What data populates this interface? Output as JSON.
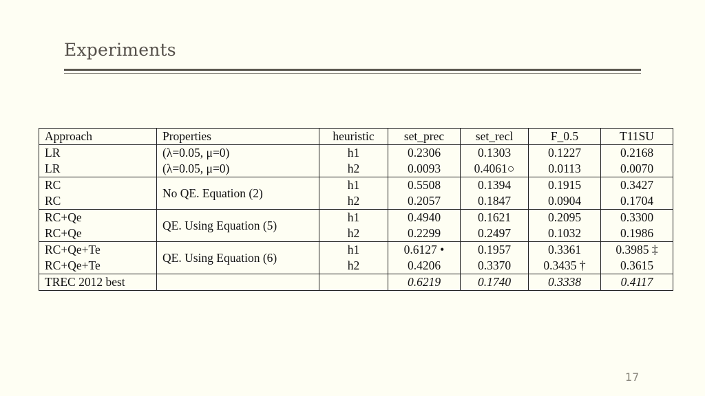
{
  "slide": {
    "title": "Experiments",
    "page_number": "17"
  },
  "table": {
    "headers": [
      "Approach",
      "Properties",
      "heuristic",
      "set_prec",
      "set_recl",
      "F_0.5",
      "T11SU"
    ],
    "groups": [
      {
        "properties": "",
        "rows": [
          {
            "approach": "LR",
            "properties": "(λ=0.05, μ=0)",
            "heuristic": "h1",
            "set_prec": "0.2306",
            "set_recl": "0.1303",
            "f05": "0.1227",
            "t11su": "0.2168"
          },
          {
            "approach": "LR",
            "properties": "(λ=0.05, μ=0)",
            "heuristic": "h2",
            "set_prec": "0.0093",
            "set_recl": "0.4061○",
            "f05": "0.0113",
            "t11su": "0.0070"
          }
        ]
      },
      {
        "properties": "No QE. Equation (2)",
        "rows": [
          {
            "approach": "RC",
            "heuristic": "h1",
            "set_prec": "0.5508",
            "set_recl": "0.1394",
            "f05": "0.1915",
            "t11su": "0.3427"
          },
          {
            "approach": "RC",
            "heuristic": "h2",
            "set_prec": "0.2057",
            "set_recl": "0.1847",
            "f05": "0.0904",
            "t11su": "0.1704"
          }
        ]
      },
      {
        "properties": "QE. Using Equation (5)",
        "rows": [
          {
            "approach": "RC+Qe",
            "heuristic": "h1",
            "set_prec": "0.4940",
            "set_recl": "0.1621",
            "f05": "0.2095",
            "t11su": "0.3300"
          },
          {
            "approach": "RC+Qe",
            "heuristic": "h2",
            "set_prec": "0.2299",
            "set_recl": "0.2497",
            "f05": "0.1032",
            "t11su": "0.1986"
          }
        ]
      },
      {
        "properties": "QE. Using Equation (6)",
        "rows": [
          {
            "approach": "RC+Qe+Te",
            "heuristic": "h1",
            "set_prec": "0.6127 •",
            "set_recl": "0.1957",
            "f05": "0.3361",
            "t11su": "0.3985 ‡"
          },
          {
            "approach": "RC+Qe+Te",
            "heuristic": "h2",
            "set_prec": "0.4206",
            "set_recl": "0.3370",
            "f05": "0.3435 †",
            "t11su": "0.3615"
          }
        ]
      },
      {
        "properties": "",
        "rows": [
          {
            "approach": "TREC 2012 best",
            "heuristic": "",
            "set_prec": "0.6219",
            "set_recl": "0.1740",
            "f05": "0.3338",
            "t11su": "0.4117"
          }
        ]
      }
    ]
  }
}
